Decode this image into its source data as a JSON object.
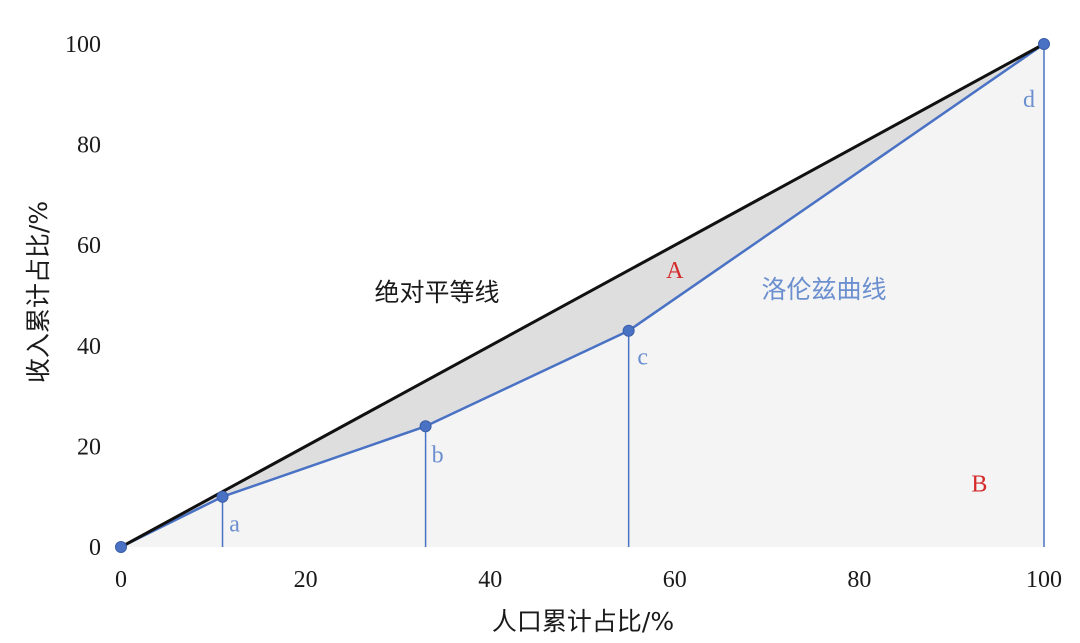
{
  "chart_data": {
    "type": "line",
    "xlabel": "人口累计占比/%",
    "ylabel": "收入累计占比/%",
    "xlim": [
      0,
      100
    ],
    "ylim": [
      0,
      100
    ],
    "xticks": [
      "0",
      "20",
      "40",
      "60",
      "80",
      "100"
    ],
    "yticks": [
      "0",
      "20",
      "40",
      "60",
      "80",
      "100"
    ],
    "grid": false,
    "series": [
      {
        "name": "绝对平等线",
        "color": "#111111",
        "x": [
          0,
          100
        ],
        "y": [
          0,
          100
        ]
      },
      {
        "name": "洛伦兹曲线",
        "color": "#4a72c4",
        "x": [
          0,
          11,
          33,
          55,
          100
        ],
        "y": [
          0,
          10,
          24,
          43,
          100
        ]
      }
    ],
    "point_labels": [
      "a",
      "b",
      "c",
      "d"
    ],
    "region_labels": [
      "A",
      "B"
    ],
    "colors": {
      "lorenz": "#4a72c4",
      "equality": "#111111",
      "region_A_fill": "#dedede",
      "region_B_fill": "#f4f4f4",
      "region_label": "#d42a2a",
      "point_label": "#6b8fcf"
    }
  }
}
